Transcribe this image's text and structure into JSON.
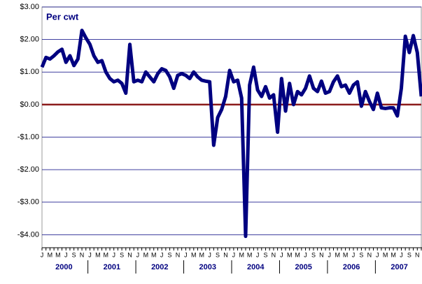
{
  "chart_data": {
    "type": "line",
    "title": "Per cwt",
    "categories": [
      "J",
      null,
      "M",
      null,
      "M",
      null,
      "J",
      null,
      "S",
      null,
      "N",
      null,
      "J",
      null,
      "M",
      null,
      "M",
      null,
      "J",
      null,
      "S",
      null,
      "N",
      null,
      "J",
      null,
      "M",
      null,
      "M",
      null,
      "J",
      null,
      "S",
      null,
      "N",
      null,
      "J",
      null,
      "M",
      null,
      "M",
      null,
      "J",
      null,
      "S",
      null,
      "N",
      null,
      "J",
      null,
      "M",
      null,
      "M",
      null,
      "J",
      null,
      "S",
      null,
      "N",
      null,
      "J",
      null,
      "M",
      null,
      "M",
      null,
      "J",
      null,
      "S",
      null,
      "N",
      null,
      "J",
      null,
      "M",
      null,
      "M",
      null,
      "J",
      null,
      "S",
      null,
      "N",
      null,
      "J",
      null,
      "M",
      null,
      "M",
      null,
      "J",
      null,
      "S",
      null,
      "N",
      null
    ],
    "year_groups": [
      "2000",
      "2001",
      "2002",
      "2003",
      "2004",
      "2005",
      "2006",
      "2007"
    ],
    "series": [
      {
        "color": "#000080",
        "values": [
          1.15,
          1.45,
          1.4,
          1.5,
          1.62,
          1.7,
          1.3,
          1.5,
          1.2,
          1.4,
          2.28,
          2.05,
          1.85,
          1.5,
          1.3,
          1.35,
          1.0,
          0.8,
          0.7,
          0.75,
          0.65,
          0.35,
          1.85,
          0.7,
          0.75,
          0.7,
          1.0,
          0.85,
          0.7,
          0.95,
          1.1,
          1.05,
          0.85,
          0.5,
          0.9,
          0.95,
          0.9,
          0.8,
          1.0,
          0.85,
          0.75,
          0.72,
          0.7,
          -1.25,
          -0.4,
          -0.15,
          0.25,
          1.05,
          0.7,
          0.75,
          0.2,
          -4.05,
          0.6,
          1.15,
          0.45,
          0.25,
          0.55,
          0.2,
          0.3,
          -0.85,
          0.8,
          -0.2,
          0.65,
          0.0,
          0.4,
          0.3,
          0.5,
          0.88,
          0.5,
          0.4,
          0.72,
          0.35,
          0.4,
          0.7,
          0.88,
          0.55,
          0.6,
          0.35,
          0.6,
          0.7,
          -0.05,
          0.4,
          0.1,
          -0.15,
          0.35,
          -0.1,
          -0.12,
          -0.1,
          -0.1,
          -0.35,
          0.5,
          2.1,
          1.6,
          2.12,
          1.6,
          0.25
        ]
      }
    ],
    "ylim": [
      -4.4,
      3.0
    ],
    "yticks": [
      {
        "value": 3,
        "label": "$3.00"
      },
      {
        "value": 2,
        "label": "$2.00"
      },
      {
        "value": 1,
        "label": "$1.00"
      },
      {
        "value": 0,
        "label": "$0.00"
      },
      {
        "value": -1,
        "label": "-$1.00"
      },
      {
        "value": -2,
        "label": "-$2.00"
      },
      {
        "value": -3,
        "label": "-$3.00"
      },
      {
        "value": -4,
        "label": "-$4.00"
      }
    ],
    "grid": true
  }
}
